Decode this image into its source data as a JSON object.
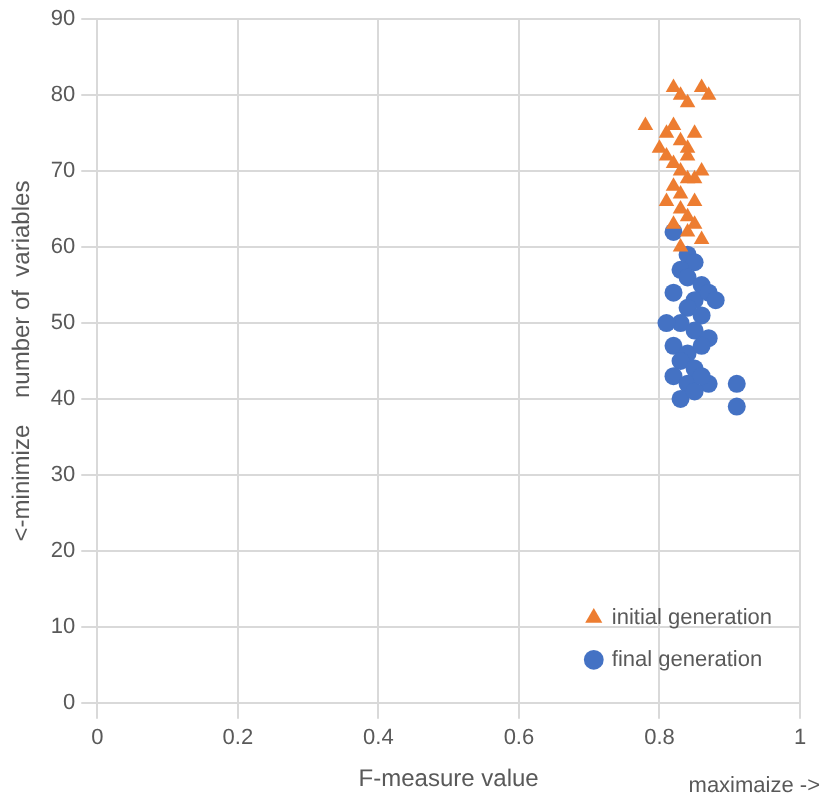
{
  "chart_data": {
    "type": "scatter",
    "xlabel": "F-measure value",
    "ylabel": "<-minimize    number of  variables",
    "annotations": [
      "maximaize ->"
    ],
    "xlim": [
      0,
      1
    ],
    "xticks": [
      0,
      0.2,
      0.4,
      0.6,
      0.8,
      1
    ],
    "ylim": [
      0,
      90
    ],
    "yticks": [
      0,
      10,
      20,
      30,
      40,
      50,
      60,
      70,
      80,
      90
    ],
    "grid": true,
    "legend": "bottom right",
    "series": [
      {
        "name": "initial generation",
        "color": "#ed7d31",
        "marker": "triangle",
        "x": [
          0.78,
          0.82,
          0.83,
          0.84,
          0.86,
          0.87,
          0.81,
          0.82,
          0.83,
          0.84,
          0.85,
          0.8,
          0.81,
          0.82,
          0.83,
          0.84,
          0.85,
          0.82,
          0.83,
          0.84,
          0.86,
          0.81,
          0.83,
          0.84,
          0.85,
          0.82,
          0.84,
          0.86,
          0.83,
          0.85
        ],
        "values": [
          76,
          81,
          80,
          79,
          81,
          80,
          75,
          76,
          74,
          73,
          75,
          73,
          72,
          71,
          70,
          72,
          69,
          68,
          67,
          69,
          70,
          66,
          65,
          64,
          66,
          63,
          62,
          61,
          60,
          63
        ]
      },
      {
        "name": "final generation",
        "color": "#4472c4",
        "marker": "circle",
        "x": [
          0.82,
          0.83,
          0.84,
          0.85,
          0.83,
          0.84,
          0.86,
          0.82,
          0.85,
          0.87,
          0.84,
          0.86,
          0.88,
          0.83,
          0.85,
          0.87,
          0.81,
          0.82,
          0.84,
          0.86,
          0.83,
          0.85,
          0.82,
          0.84,
          0.87,
          0.91,
          0.91,
          0.83,
          0.85,
          0.86
        ],
        "values": [
          62,
          null,
          59,
          58,
          57,
          56,
          55,
          54,
          53,
          54,
          52,
          51,
          53,
          50,
          49,
          48,
          50,
          47,
          46,
          47,
          45,
          44,
          43,
          42,
          42,
          42,
          39,
          40,
          41,
          43
        ]
      }
    ]
  }
}
